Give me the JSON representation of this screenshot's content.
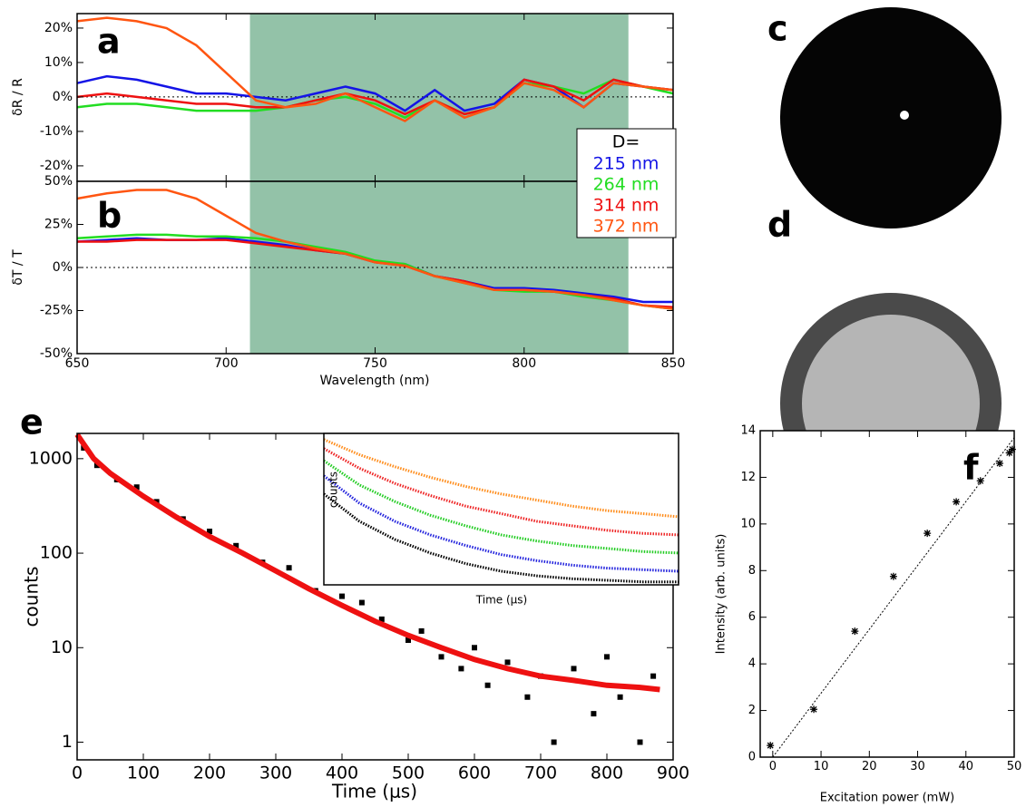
{
  "chart_data": [
    {
      "type": "line",
      "label": "a",
      "ylabel": "δR / R",
      "xlim": [
        650,
        850
      ],
      "ylim": [
        -24.5,
        24.2
      ],
      "yticks": [
        {
          "value": -20,
          "label": "-20%"
        },
        {
          "value": -10,
          "label": "-10%"
        },
        {
          "value": 0,
          "label": "0%"
        },
        {
          "value": 10,
          "label": "10%"
        },
        {
          "value": 20,
          "label": "20%"
        }
      ],
      "highlight": [
        708,
        835
      ],
      "highlight_color": "#93c2a8",
      "zero_line": true,
      "legend_title": "D=",
      "x": [
        650,
        660,
        670,
        680,
        690,
        700,
        710,
        720,
        730,
        740,
        750,
        760,
        770,
        780,
        790,
        800,
        810,
        820,
        830,
        840,
        850
      ],
      "series": [
        {
          "name": "215 nm",
          "color": "#1414e6",
          "values": [
            4,
            6,
            5,
            3,
            1,
            1,
            0,
            -1,
            1,
            3,
            1,
            -4,
            2,
            -4,
            -2,
            5,
            3,
            -3,
            4,
            3,
            2
          ]
        },
        {
          "name": "264 nm",
          "color": "#22dd22",
          "values": [
            -3,
            -2,
            -2,
            -3,
            -4,
            -4,
            -4,
            -3,
            -1,
            0,
            -2,
            -6,
            -1,
            -5,
            -3,
            4,
            3,
            1,
            5,
            3,
            1
          ]
        },
        {
          "name": "314 nm",
          "color": "#ee1111",
          "values": [
            0,
            1,
            0,
            -1,
            -2,
            -2,
            -3,
            -3,
            -1,
            1,
            -1,
            -5,
            -1,
            -5,
            -3,
            5,
            3,
            -1,
            5,
            3,
            2
          ]
        },
        {
          "name": "372 nm",
          "color": "#ff5511",
          "values": [
            22,
            23,
            22,
            20,
            15,
            7,
            -1,
            -3,
            -2,
            1,
            -3,
            -7,
            -1,
            -6,
            -3,
            4,
            2,
            -3,
            4,
            3,
            2
          ]
        }
      ]
    },
    {
      "type": "line",
      "label": "b",
      "ylabel": "δT / T",
      "xlabel": "Wavelength (nm)",
      "xlim": [
        650,
        850
      ],
      "ylim": [
        -50,
        50
      ],
      "xticks": [
        650,
        700,
        750,
        800,
        850
      ],
      "yticks": [
        {
          "value": -50,
          "label": "-50%"
        },
        {
          "value": -25,
          "label": "-25%"
        },
        {
          "value": 0,
          "label": "0%"
        },
        {
          "value": 25,
          "label": "25%"
        },
        {
          "value": 50,
          "label": "50%"
        }
      ],
      "highlight": [
        708,
        835
      ],
      "highlight_color": "#93c2a8",
      "zero_line": true,
      "x": [
        650,
        660,
        670,
        680,
        690,
        700,
        710,
        720,
        730,
        740,
        750,
        760,
        770,
        780,
        790,
        800,
        810,
        820,
        830,
        840,
        850
      ],
      "series": [
        {
          "color": "#1414e6",
          "values": [
            15,
            16,
            17,
            16,
            16,
            17,
            15,
            13,
            10,
            8,
            3,
            2,
            -5,
            -8,
            -12,
            -12,
            -13,
            -15,
            -17,
            -20,
            -20
          ]
        },
        {
          "color": "#22dd22",
          "values": [
            17,
            18,
            19,
            19,
            18,
            18,
            17,
            15,
            12,
            9,
            4,
            2,
            -5,
            -9,
            -13,
            -14,
            -14,
            -17,
            -19,
            -22,
            -24
          ]
        },
        {
          "color": "#ee1111",
          "values": [
            15,
            15,
            16,
            16,
            16,
            16,
            14,
            12,
            10,
            8,
            3,
            1,
            -5,
            -8,
            -13,
            -13,
            -14,
            -16,
            -18,
            -22,
            -23
          ]
        },
        {
          "color": "#ff5511",
          "values": [
            40,
            43,
            45,
            45,
            40,
            30,
            20,
            15,
            11,
            8,
            3,
            1,
            -5,
            -9,
            -13,
            -13,
            -14,
            -16,
            -19,
            -22,
            -24
          ]
        }
      ]
    },
    {
      "type": "scatter",
      "label": "e",
      "ylabel": "counts",
      "xlabel": "Time (μs)",
      "log_y": true,
      "xlim": [
        0,
        900
      ],
      "ylim": [
        0.65,
        1850
      ],
      "xticks": [
        0,
        100,
        200,
        300,
        400,
        500,
        600,
        700,
        800,
        900
      ],
      "yticks": [
        1,
        10,
        100,
        1000
      ],
      "series": [
        {
          "color": "#000000",
          "marker": "square",
          "x": [
            10,
            30,
            60,
            90,
            120,
            160,
            200,
            240,
            280,
            320,
            360,
            400,
            430,
            460,
            500,
            520,
            550,
            580,
            600,
            620,
            650,
            680,
            700,
            720,
            750,
            780,
            800,
            820,
            850,
            870
          ],
          "values": [
            1300,
            850,
            600,
            500,
            350,
            230,
            170,
            120,
            80,
            70,
            40,
            35,
            30,
            20,
            12,
            15,
            8,
            6,
            10,
            4,
            7,
            3,
            5,
            1,
            6,
            2,
            8,
            3,
            1,
            5
          ]
        }
      ],
      "fit": {
        "color": "#ee1111",
        "x": [
          0,
          25,
          50,
          100,
          150,
          200,
          250,
          300,
          350,
          400,
          450,
          500,
          550,
          600,
          650,
          700,
          750,
          800,
          850,
          880
        ],
        "values": [
          1800,
          1000,
          700,
          400,
          240,
          150,
          100,
          65,
          42,
          28,
          19,
          13.5,
          10,
          7.5,
          6,
          5,
          4.5,
          4,
          3.8,
          3.6
        ]
      }
    },
    {
      "type": "line",
      "ylabel": "counts",
      "xlabel": "Time (μs)",
      "xlim": [
        0,
        1
      ],
      "ylim": [
        0,
        1
      ],
      "x": [
        0,
        0.1,
        0.2,
        0.3,
        0.4,
        0.5,
        0.6,
        0.7,
        0.8,
        0.9,
        1
      ],
      "series": [
        {
          "color": "#000000",
          "values": [
            0.6,
            0.42,
            0.3,
            0.21,
            0.14,
            0.09,
            0.06,
            0.04,
            0.03,
            0.02,
            0.02
          ]
        },
        {
          "color": "#2222dd",
          "values": [
            0.72,
            0.54,
            0.42,
            0.33,
            0.26,
            0.2,
            0.16,
            0.13,
            0.11,
            0.1,
            0.09
          ]
        },
        {
          "color": "#22cc22",
          "values": [
            0.82,
            0.66,
            0.55,
            0.46,
            0.39,
            0.33,
            0.29,
            0.26,
            0.24,
            0.22,
            0.21
          ]
        },
        {
          "color": "#ee2222",
          "values": [
            0.9,
            0.77,
            0.67,
            0.59,
            0.52,
            0.47,
            0.42,
            0.39,
            0.36,
            0.34,
            0.33
          ]
        },
        {
          "color": "#ff8c1a",
          "values": [
            0.96,
            0.86,
            0.78,
            0.71,
            0.65,
            0.6,
            0.56,
            0.52,
            0.49,
            0.47,
            0.45
          ]
        }
      ]
    },
    {
      "type": "scatter",
      "label": "f",
      "ylabel": "Intensity (arb. units)",
      "xlabel": "Excitation power (mW)",
      "xlim": [
        -2.6,
        50
      ],
      "ylim": [
        0,
        14
      ],
      "xticks": [
        0,
        10,
        20,
        30,
        40,
        50
      ],
      "yticks": [
        0,
        2,
        4,
        6,
        8,
        10,
        12,
        14
      ],
      "series": [
        {
          "color": "#000000",
          "marker": "star",
          "x": [
            -0.5,
            8.5,
            17,
            25,
            32,
            38,
            43,
            47,
            49,
            49.6
          ],
          "values": [
            0.5,
            2.05,
            5.4,
            7.75,
            9.6,
            10.95,
            11.85,
            12.6,
            13.05,
            13.2
          ]
        }
      ],
      "fit": {
        "color": "#000000",
        "dashed": true,
        "x": [
          0,
          50
        ],
        "values": [
          0,
          13.7
        ]
      }
    }
  ],
  "images": [
    {
      "label": "c"
    },
    {
      "label": "d"
    }
  ]
}
